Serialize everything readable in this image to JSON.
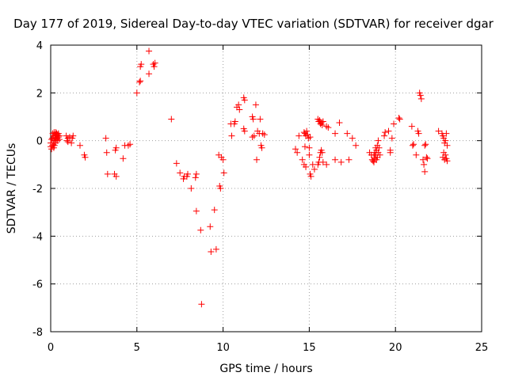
{
  "chart_data": {
    "type": "scatter",
    "title": "Day 177 of 2019, Sidereal Day-to-day VTEC variation (SDTVAR) for receiver dgar",
    "xlabel": "GPS time / hours",
    "ylabel": "SDTVAR / TECUs",
    "xlim": [
      0,
      25
    ],
    "ylim": [
      -8,
      4
    ],
    "xticks": [
      0,
      5,
      10,
      15,
      20,
      25
    ],
    "yticks": [
      -8,
      -6,
      -4,
      -2,
      0,
      2,
      4
    ],
    "grid": true,
    "marker": "+",
    "marker_color": "#ff0000",
    "series": [
      {
        "name": "SDTVAR",
        "points": [
          [
            0.0,
            -0.1
          ],
          [
            0.0,
            -0.25
          ],
          [
            0.05,
            -0.35
          ],
          [
            0.05,
            0.05
          ],
          [
            0.1,
            -0.2
          ],
          [
            0.1,
            0.1
          ],
          [
            0.12,
            0.3
          ],
          [
            0.15,
            -0.15
          ],
          [
            0.15,
            0.2
          ],
          [
            0.18,
            -0.3
          ],
          [
            0.2,
            0.0
          ],
          [
            0.2,
            0.35
          ],
          [
            0.22,
            -0.2
          ],
          [
            0.25,
            0.25
          ],
          [
            0.25,
            0.1
          ],
          [
            0.28,
            -0.1
          ],
          [
            0.3,
            0.35
          ],
          [
            0.3,
            0.15
          ],
          [
            0.32,
            0.05
          ],
          [
            0.35,
            0.3
          ],
          [
            0.35,
            0.2
          ],
          [
            0.38,
            0.1
          ],
          [
            0.4,
            0.25
          ],
          [
            0.4,
            0.0
          ],
          [
            0.45,
            0.3
          ],
          [
            0.45,
            0.15
          ],
          [
            0.5,
            0.2
          ],
          [
            0.5,
            0.05
          ],
          [
            0.9,
            0.2
          ],
          [
            0.95,
            0.0
          ],
          [
            1.0,
            0.1
          ],
          [
            1.0,
            -0.05
          ],
          [
            1.1,
            0.15
          ],
          [
            1.2,
            -0.1
          ],
          [
            1.25,
            0.1
          ],
          [
            1.3,
            0.2
          ],
          [
            1.7,
            -0.2
          ],
          [
            1.95,
            -0.6
          ],
          [
            2.0,
            -0.7
          ],
          [
            3.2,
            0.1
          ],
          [
            3.25,
            -0.5
          ],
          [
            3.3,
            -1.4
          ],
          [
            3.7,
            -1.4
          ],
          [
            3.75,
            -0.4
          ],
          [
            3.8,
            -0.3
          ],
          [
            3.8,
            -1.5
          ],
          [
            4.2,
            -0.75
          ],
          [
            4.3,
            -0.2
          ],
          [
            4.5,
            -0.2
          ],
          [
            4.6,
            -0.15
          ],
          [
            5.0,
            2.0
          ],
          [
            5.15,
            2.45
          ],
          [
            5.2,
            2.5
          ],
          [
            5.2,
            3.1
          ],
          [
            5.25,
            3.2
          ],
          [
            5.7,
            2.8
          ],
          [
            5.7,
            3.75
          ],
          [
            5.95,
            3.2
          ],
          [
            6.0,
            3.1
          ],
          [
            6.05,
            3.25
          ],
          [
            7.0,
            0.9
          ],
          [
            7.3,
            -0.95
          ],
          [
            7.5,
            -1.35
          ],
          [
            7.7,
            -1.6
          ],
          [
            7.75,
            -1.5
          ],
          [
            7.9,
            -1.5
          ],
          [
            7.95,
            -1.4
          ],
          [
            8.15,
            -2.0
          ],
          [
            8.4,
            -1.55
          ],
          [
            8.45,
            -1.4
          ],
          [
            8.45,
            -2.95
          ],
          [
            8.7,
            -3.75
          ],
          [
            8.75,
            -6.85
          ],
          [
            9.25,
            -3.6
          ],
          [
            9.3,
            -4.65
          ],
          [
            9.5,
            -2.9
          ],
          [
            9.6,
            -4.55
          ],
          [
            9.75,
            -0.6
          ],
          [
            9.8,
            -1.9
          ],
          [
            9.85,
            -2.0
          ],
          [
            9.9,
            -0.7
          ],
          [
            10.05,
            -1.35
          ],
          [
            10.0,
            -0.8
          ],
          [
            10.45,
            0.7
          ],
          [
            10.5,
            0.2
          ],
          [
            10.65,
            0.7
          ],
          [
            10.7,
            0.8
          ],
          [
            10.8,
            1.4
          ],
          [
            10.9,
            1.5
          ],
          [
            10.95,
            1.3
          ],
          [
            11.2,
            1.8
          ],
          [
            11.25,
            1.7
          ],
          [
            11.2,
            0.5
          ],
          [
            11.25,
            0.4
          ],
          [
            11.7,
            1.0
          ],
          [
            11.7,
            0.15
          ],
          [
            11.75,
            0.9
          ],
          [
            11.8,
            0.2
          ],
          [
            11.9,
            1.5
          ],
          [
            11.95,
            -0.8
          ],
          [
            12.0,
            0.4
          ],
          [
            12.1,
            0.3
          ],
          [
            12.15,
            0.9
          ],
          [
            12.2,
            -0.2
          ],
          [
            12.25,
            -0.3
          ],
          [
            12.3,
            0.3
          ],
          [
            12.4,
            0.25
          ],
          [
            14.2,
            -0.35
          ],
          [
            14.3,
            -0.5
          ],
          [
            14.4,
            0.2
          ],
          [
            14.6,
            -0.8
          ],
          [
            14.7,
            -1.0
          ],
          [
            14.75,
            -0.25
          ],
          [
            14.8,
            -1.1
          ],
          [
            14.7,
            0.35
          ],
          [
            14.75,
            0.3
          ],
          [
            14.8,
            0.2
          ],
          [
            14.85,
            0.4
          ],
          [
            14.9,
            0.25
          ],
          [
            14.95,
            0.1
          ],
          [
            15.0,
            -0.3
          ],
          [
            15.0,
            -0.6
          ],
          [
            15.05,
            -1.4
          ],
          [
            15.1,
            -1.5
          ],
          [
            15.05,
            0.15
          ],
          [
            15.2,
            -1.0
          ],
          [
            15.3,
            -1.2
          ],
          [
            15.5,
            0.9
          ],
          [
            15.55,
            0.8
          ],
          [
            15.6,
            0.85
          ],
          [
            15.65,
            0.7
          ],
          [
            15.7,
            0.75
          ],
          [
            15.75,
            0.65
          ],
          [
            15.8,
            0.8
          ],
          [
            15.5,
            -1.0
          ],
          [
            15.55,
            -0.9
          ],
          [
            15.6,
            -0.7
          ],
          [
            15.65,
            -0.5
          ],
          [
            15.7,
            -0.4
          ],
          [
            15.75,
            -0.5
          ],
          [
            15.8,
            -0.9
          ],
          [
            16.0,
            -1.0
          ],
          [
            16.0,
            0.6
          ],
          [
            16.1,
            0.55
          ],
          [
            16.5,
            -0.8
          ],
          [
            16.5,
            0.3
          ],
          [
            16.75,
            0.75
          ],
          [
            16.85,
            -0.9
          ],
          [
            17.2,
            0.3
          ],
          [
            17.3,
            -0.8
          ],
          [
            17.5,
            0.1
          ],
          [
            17.7,
            -0.2
          ],
          [
            18.5,
            -0.5
          ],
          [
            18.6,
            -0.6
          ],
          [
            18.65,
            -0.8
          ],
          [
            18.7,
            -0.85
          ],
          [
            18.75,
            -0.6
          ],
          [
            18.75,
            -0.9
          ],
          [
            18.8,
            -0.5
          ],
          [
            18.8,
            -0.75
          ],
          [
            18.85,
            -0.3
          ],
          [
            18.85,
            -0.6
          ],
          [
            18.9,
            -0.4
          ],
          [
            18.9,
            -0.8
          ],
          [
            18.95,
            -0.2
          ],
          [
            18.95,
            -0.7
          ],
          [
            19.0,
            -0.5
          ],
          [
            19.0,
            0.0
          ],
          [
            19.05,
            -0.3
          ],
          [
            19.1,
            -0.6
          ],
          [
            19.35,
            0.2
          ],
          [
            19.4,
            0.35
          ],
          [
            19.6,
            0.4
          ],
          [
            19.7,
            -0.4
          ],
          [
            19.7,
            -0.5
          ],
          [
            19.8,
            0.1
          ],
          [
            19.9,
            0.7
          ],
          [
            20.2,
            0.95
          ],
          [
            20.25,
            0.9
          ],
          [
            20.95,
            0.6
          ],
          [
            21.0,
            -0.2
          ],
          [
            21.05,
            -0.15
          ],
          [
            21.2,
            -0.6
          ],
          [
            21.3,
            0.4
          ],
          [
            21.35,
            0.3
          ],
          [
            21.4,
            2.0
          ],
          [
            21.45,
            1.9
          ],
          [
            21.5,
            1.75
          ],
          [
            21.6,
            -0.8
          ],
          [
            21.65,
            -1.0
          ],
          [
            21.7,
            -1.3
          ],
          [
            21.7,
            -0.2
          ],
          [
            21.75,
            -0.15
          ],
          [
            21.8,
            -0.7
          ],
          [
            21.85,
            -0.75
          ],
          [
            22.5,
            0.4
          ],
          [
            22.7,
            0.3
          ],
          [
            22.75,
            0.2
          ],
          [
            22.75,
            -0.7
          ],
          [
            22.8,
            0.1
          ],
          [
            22.8,
            -0.5
          ],
          [
            22.85,
            -0.1
          ],
          [
            22.85,
            -0.8
          ],
          [
            22.9,
            0.0
          ],
          [
            22.9,
            -0.6
          ],
          [
            22.95,
            0.3
          ],
          [
            22.95,
            -0.75
          ],
          [
            23.0,
            -0.2
          ],
          [
            23.0,
            -0.85
          ]
        ]
      }
    ]
  }
}
